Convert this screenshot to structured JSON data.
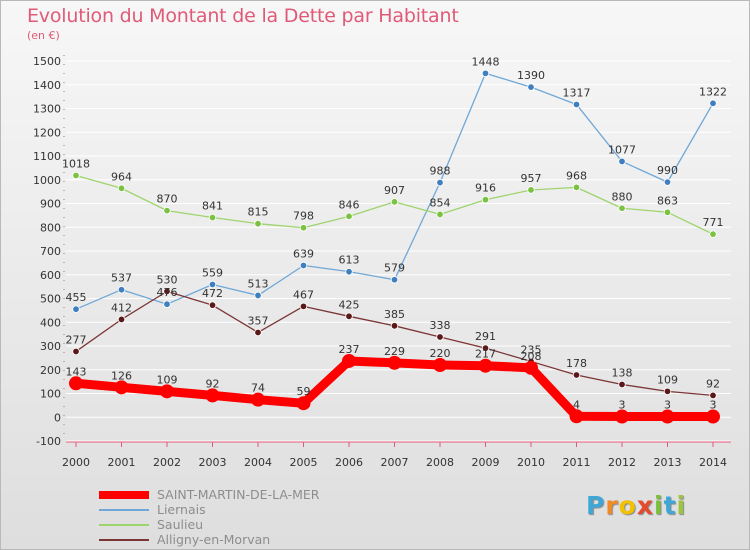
{
  "header": {
    "title": "Evolution du Montant de la Dette par Habitant",
    "unit": "(en €)"
  },
  "logo": {
    "text": "Proxiti",
    "letters": [
      {
        "ch": "P",
        "color": "#3fa7d6"
      },
      {
        "ch": "r",
        "color": "#f08a24"
      },
      {
        "ch": "o",
        "color": "#f2c200"
      },
      {
        "ch": "x",
        "color": "#e64a2e"
      },
      {
        "ch": "i",
        "color": "#7cbf3b"
      },
      {
        "ch": "t",
        "color": "#3fa7d6"
      },
      {
        "ch": "i",
        "color": "#9bc53d"
      }
    ]
  },
  "chart_data": {
    "type": "line",
    "title": "Evolution du Montant de la Dette par Habitant",
    "ylabel": "(en €)",
    "xlabel": "",
    "ylim": [
      -100,
      1500
    ],
    "ytick_step": 100,
    "grid": "horizontal",
    "legend_position": "bottom-left",
    "x": [
      "2000",
      "2001",
      "2002",
      "2003",
      "2004",
      "2005",
      "2006",
      "2007",
      "2008",
      "2009",
      "2010",
      "2011",
      "2012",
      "2013",
      "2014"
    ],
    "series": [
      {
        "name": "SAINT-MARTIN-DE-LA-MER",
        "color": "#ff0000",
        "point_color": "#ff0000",
        "emphasis": true,
        "values": [
          143,
          126,
          109,
          92,
          74,
          59,
          237,
          229,
          220,
          217,
          208,
          4,
          3,
          3,
          3
        ]
      },
      {
        "name": "Liernais",
        "color": "#6fa8d8",
        "point_color": "#3f7fc0",
        "values": [
          455,
          537,
          476,
          559,
          513,
          639,
          613,
          579,
          988,
          1448,
          1390,
          1317,
          1077,
          990,
          1322
        ]
      },
      {
        "name": "Saulieu",
        "color": "#9ed46e",
        "point_color": "#7cc242",
        "values": [
          1018,
          964,
          870,
          841,
          815,
          798,
          846,
          907,
          854,
          916,
          957,
          968,
          880,
          863,
          771
        ]
      },
      {
        "name": "Alligny-en-Morvan",
        "color": "#7b3535",
        "point_color": "#5a1818",
        "values": [
          277,
          412,
          530,
          472,
          357,
          467,
          425,
          385,
          338,
          291,
          235,
          178,
          138,
          109,
          92
        ]
      }
    ]
  }
}
